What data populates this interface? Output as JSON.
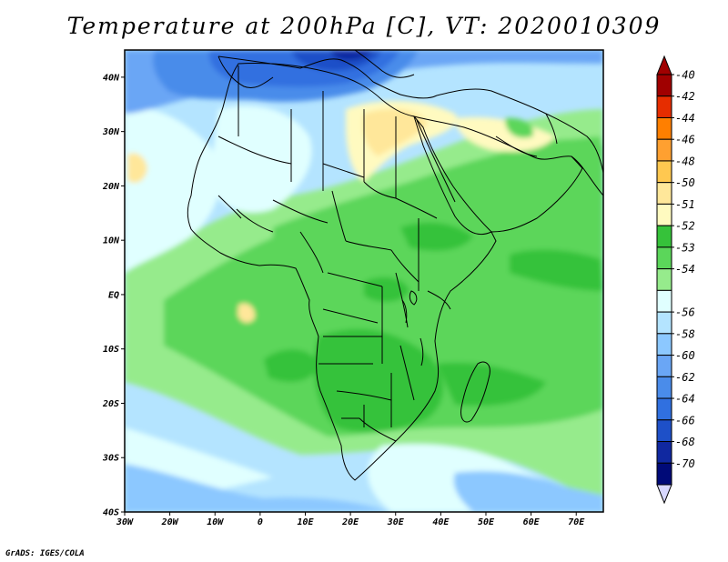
{
  "title": "Temperature at 200hPa [C], VT: 2020010309",
  "credit": "GrADS: IGES/COLA",
  "map": {
    "lon_range": [
      -30,
      76
    ],
    "lat_range": [
      -40,
      45
    ],
    "lat_ticks": [
      {
        "lat": 40,
        "label": "40N"
      },
      {
        "lat": 30,
        "label": "30N"
      },
      {
        "lat": 20,
        "label": "20N"
      },
      {
        "lat": 10,
        "label": "10N"
      },
      {
        "lat": 0,
        "label": "EQ"
      },
      {
        "lat": -10,
        "label": "10S"
      },
      {
        "lat": -20,
        "label": "20S"
      },
      {
        "lat": -30,
        "label": "30S"
      },
      {
        "lat": -40,
        "label": "40S"
      }
    ],
    "lon_ticks": [
      {
        "lon": -30,
        "label": "30W"
      },
      {
        "lon": -20,
        "label": "20W"
      },
      {
        "lon": -10,
        "label": "10W"
      },
      {
        "lon": 0,
        "label": "0"
      },
      {
        "lon": 10,
        "label": "10E"
      },
      {
        "lon": 20,
        "label": "20E"
      },
      {
        "lon": 30,
        "label": "30E"
      },
      {
        "lon": 40,
        "label": "40E"
      },
      {
        "lon": 50,
        "label": "50E"
      },
      {
        "lon": 60,
        "label": "60E"
      },
      {
        "lon": 70,
        "label": "70E"
      }
    ]
  },
  "colorbar": [
    {
      "label": "-40",
      "color": "#a00000"
    },
    {
      "label": "-42",
      "color": "#e62d00"
    },
    {
      "label": "-44",
      "color": "#ff7f00"
    },
    {
      "label": "-46",
      "color": "#ffa030"
    },
    {
      "label": "-48",
      "color": "#ffc850"
    },
    {
      "label": "-50",
      "color": "#ffe79a"
    },
    {
      "label": "-51",
      "color": "#fffac0"
    },
    {
      "label": "-52",
      "color": "#36c23a"
    },
    {
      "label": "-53",
      "color": "#5bd65a"
    },
    {
      "label": "-54",
      "color": "#96eb8c"
    },
    {
      "label": "",
      "color": "#e0ffff"
    },
    {
      "label": "-56",
      "color": "#b4e4ff"
    },
    {
      "label": "-58",
      "color": "#8cc8ff"
    },
    {
      "label": "-60",
      "color": "#6aa6f5"
    },
    {
      "label": "-62",
      "color": "#4a8cea"
    },
    {
      "label": "-64",
      "color": "#3070e0"
    },
    {
      "label": "-66",
      "color": "#1e50c8"
    },
    {
      "label": "-68",
      "color": "#1028a0"
    },
    {
      "label": "-70",
      "color": "#000a78"
    }
  ],
  "colorbar_low": "#d8d8ff"
}
